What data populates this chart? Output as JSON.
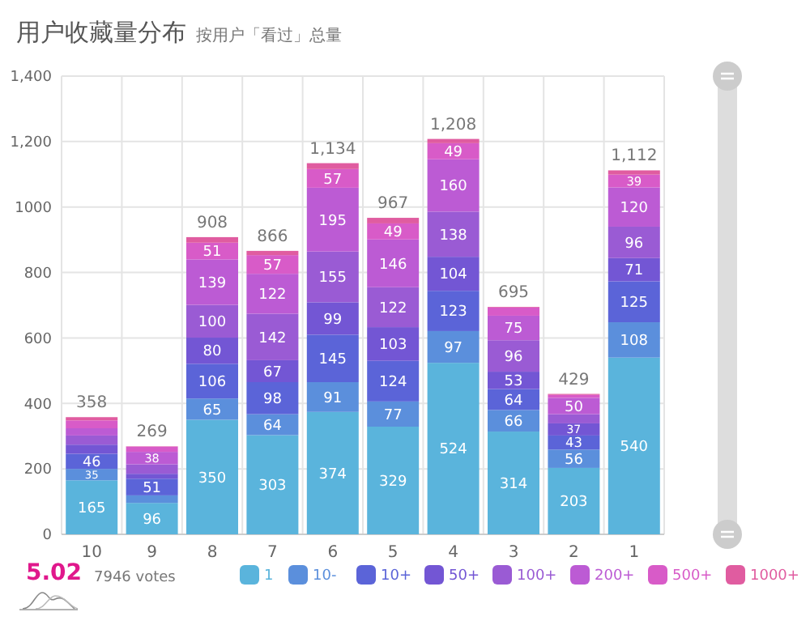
{
  "chart_data": {
    "type": "bar",
    "title": "用户收藏量分布",
    "subtitle": "按用户「看过」总量",
    "categories": [
      "10",
      "9",
      "8",
      "7",
      "6",
      "5",
      "4",
      "3",
      "2",
      "1"
    ],
    "stacked": true,
    "grid": true,
    "legend": "bottom",
    "ylim": [
      0,
      1400
    ],
    "yticks": [
      0,
      200,
      400,
      600,
      800,
      1000,
      {
        "value": 1200,
        "label": "1,200"
      },
      {
        "value": 1400,
        "label": "1,400"
      }
    ],
    "series": [
      {
        "name": "1",
        "color": "#5ab4dc",
        "values": [
          165,
          96,
          350,
          303,
          374,
          329,
          524,
          314,
          203,
          540
        ],
        "value_labels": [
          "165",
          "96",
          "350",
          "303",
          "374",
          "329",
          "524",
          "314",
          "203",
          "540"
        ]
      },
      {
        "name": "10-",
        "color": "#5b8fdc",
        "values": [
          35,
          23,
          65,
          64,
          91,
          77,
          97,
          66,
          56,
          108
        ],
        "value_labels": [
          "35",
          null,
          "65",
          "64",
          "91",
          "77",
          "97",
          "66",
          "56",
          "108"
        ]
      },
      {
        "name": "10+",
        "color": "#5b64d8",
        "values": [
          46,
          51,
          106,
          98,
          145,
          124,
          123,
          64,
          43,
          125
        ],
        "value_labels": [
          "46",
          "51",
          "106",
          "98",
          "145",
          "124",
          "123",
          "64",
          "43",
          "125"
        ]
      },
      {
        "name": "50+",
        "color": "#7356d4",
        "values": [
          28,
          15,
          80,
          67,
          99,
          103,
          104,
          53,
          37,
          71
        ],
        "value_labels": [
          null,
          null,
          "80",
          "67",
          "99",
          "103",
          "104",
          "53",
          "37",
          "71"
        ]
      },
      {
        "name": "100+",
        "color": "#9a5bd4",
        "values": [
          28,
          29,
          100,
          142,
          155,
          122,
          138,
          96,
          28,
          96
        ],
        "value_labels": [
          null,
          null,
          "100",
          "142",
          "155",
          "122",
          "138",
          "96",
          null,
          "96"
        ]
      },
      {
        "name": "200+",
        "color": "#bc5bd4",
        "values": [
          22,
          38,
          139,
          122,
          195,
          146,
          160,
          75,
          50,
          120
        ],
        "value_labels": [
          null,
          "38",
          "139",
          "122",
          "195",
          "146",
          "160",
          "75",
          "50",
          "120"
        ]
      },
      {
        "name": "500+",
        "color": "#d85bc8",
        "values": [
          24,
          16,
          51,
          57,
          57,
          49,
          49,
          25,
          9,
          39
        ],
        "value_labels": [
          null,
          null,
          "51",
          "57",
          "57",
          "49",
          "49",
          null,
          null,
          "39"
        ]
      },
      {
        "name": "1000+",
        "color": "#e05ca0",
        "values": [
          10,
          1,
          17,
          13,
          18,
          17,
          13,
          2,
          3,
          13
        ],
        "value_labels": [
          null,
          null,
          null,
          null,
          null,
          null,
          null,
          null,
          null,
          null
        ]
      }
    ],
    "totals": [
      "358",
      "269",
      "908",
      "866",
      "1,134",
      "967",
      "1,208",
      "695",
      "429",
      "1,112"
    ],
    "annotations": [
      "5.02",
      "7946 votes"
    ]
  }
}
